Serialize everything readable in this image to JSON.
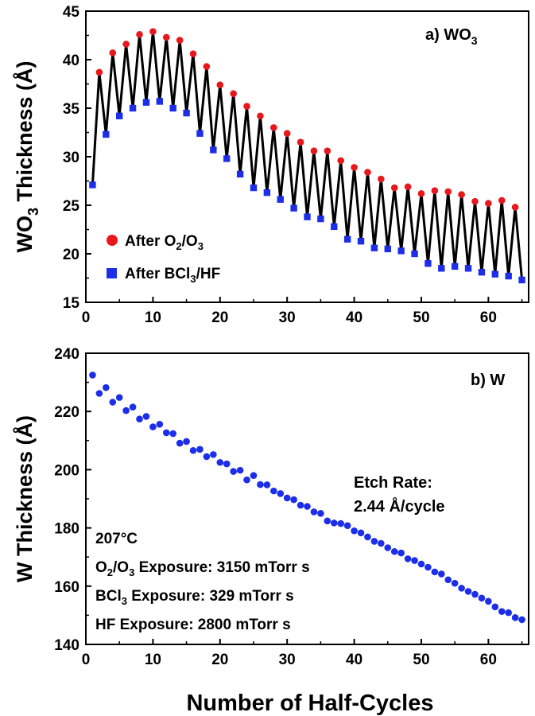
{
  "chart_data": [
    {
      "type": "line",
      "panel_label": "a) WO",
      "panel_label_sub": "3",
      "ylabel": "WO",
      "ylabel_sub": "3",
      "ylabel_rest": " Thickness (Å)",
      "xlim": [
        0,
        66
      ],
      "ylim": [
        15,
        45
      ],
      "x_ticks": [
        0,
        10,
        20,
        30,
        40,
        50,
        60
      ],
      "y_ticks": [
        15,
        20,
        25,
        30,
        35,
        40,
        45
      ],
      "line_color": "#000000",
      "x": [
        1,
        2,
        3,
        4,
        5,
        6,
        7,
        8,
        9,
        10,
        11,
        12,
        13,
        14,
        15,
        16,
        17,
        18,
        19,
        20,
        21,
        22,
        23,
        24,
        25,
        26,
        27,
        28,
        29,
        30,
        31,
        32,
        33,
        34,
        35,
        36,
        37,
        38,
        39,
        40,
        41,
        42,
        43,
        44,
        45,
        46,
        47,
        48,
        49,
        50,
        51,
        52,
        53,
        54,
        55,
        56,
        57,
        58,
        59,
        60,
        61,
        62,
        63,
        64,
        65
      ],
      "values": [
        27.1,
        38.7,
        32.3,
        40.7,
        34.2,
        41.6,
        35.0,
        42.6,
        35.6,
        42.9,
        35.7,
        42.3,
        35.0,
        42.0,
        34.5,
        40.6,
        32.4,
        39.3,
        30.7,
        37.4,
        29.8,
        36.5,
        28.2,
        35.2,
        26.8,
        34.2,
        26.3,
        33.0,
        25.6,
        32.4,
        24.7,
        31.5,
        23.8,
        30.6,
        23.6,
        30.6,
        22.8,
        29.6,
        21.5,
        28.9,
        21.3,
        28.4,
        20.6,
        27.7,
        20.5,
        26.8,
        20.3,
        26.9,
        20.0,
        26.2,
        19.0,
        26.5,
        18.5,
        26.4,
        18.7,
        26.1,
        18.5,
        25.4,
        18.1,
        25.2,
        17.9,
        25.5,
        17.7,
        24.8,
        17.3
      ],
      "series": [
        {
          "name_parts": [
            "After O",
            "2",
            "/O",
            "3"
          ],
          "marker": "circle",
          "color": "#e8171b",
          "x": [
            2,
            4,
            6,
            8,
            10,
            12,
            14,
            16,
            18,
            20,
            22,
            24,
            26,
            28,
            30,
            32,
            34,
            36,
            38,
            40,
            42,
            44,
            46,
            48,
            50,
            52,
            54,
            56,
            58,
            60,
            62,
            64
          ],
          "values": [
            38.7,
            40.7,
            41.6,
            42.6,
            42.9,
            42.3,
            42.0,
            40.6,
            39.3,
            37.4,
            36.5,
            35.2,
            34.2,
            33.0,
            32.4,
            31.5,
            30.6,
            30.6,
            29.6,
            28.9,
            28.4,
            27.7,
            26.8,
            26.9,
            26.2,
            26.5,
            26.4,
            26.1,
            25.4,
            25.2,
            25.5,
            24.8
          ]
        },
        {
          "name_parts": [
            "After BCl",
            "3",
            "/HF",
            ""
          ],
          "marker": "square",
          "color": "#1c2ee8",
          "x": [
            1,
            3,
            5,
            7,
            9,
            11,
            13,
            15,
            17,
            19,
            21,
            23,
            25,
            27,
            29,
            31,
            33,
            35,
            37,
            39,
            41,
            43,
            45,
            47,
            49,
            51,
            53,
            55,
            57,
            59,
            61,
            63,
            65
          ],
          "values": [
            27.1,
            32.3,
            34.2,
            35.0,
            35.6,
            35.7,
            35.0,
            34.5,
            32.4,
            30.7,
            29.8,
            28.2,
            26.8,
            26.3,
            25.6,
            24.7,
            23.8,
            23.6,
            22.8,
            21.5,
            21.3,
            20.6,
            20.5,
            20.3,
            20.0,
            19.0,
            18.5,
            18.7,
            18.5,
            18.1,
            17.9,
            17.7,
            17.3
          ]
        }
      ],
      "legend_position": "bottom-left"
    },
    {
      "type": "scatter",
      "panel_label": "b) W",
      "ylabel": "W Thickness (Å)",
      "xlabel": "Number of Half-Cycles",
      "xlim": [
        0,
        66
      ],
      "ylim": [
        140,
        240
      ],
      "x_ticks": [
        0,
        10,
        20,
        30,
        40,
        50,
        60
      ],
      "y_ticks": [
        140,
        160,
        180,
        200,
        220,
        240
      ],
      "marker_color": "#1c2ee8",
      "x": [
        1,
        2,
        3,
        4,
        5,
        6,
        7,
        8,
        9,
        10,
        11,
        12,
        13,
        14,
        15,
        16,
        17,
        18,
        19,
        20,
        21,
        22,
        23,
        24,
        25,
        26,
        27,
        28,
        29,
        30,
        31,
        32,
        33,
        34,
        35,
        36,
        37,
        38,
        39,
        40,
        41,
        42,
        43,
        44,
        45,
        46,
        47,
        48,
        49,
        50,
        51,
        52,
        53,
        54,
        55,
        56,
        57,
        58,
        59,
        60,
        61,
        62,
        63,
        64,
        65
      ],
      "values": [
        232.5,
        226.2,
        228.2,
        223.2,
        224.8,
        220.3,
        221.5,
        217.4,
        218.3,
        214.7,
        215.6,
        212.7,
        212.4,
        209.1,
        209.7,
        206.6,
        207.0,
        204.5,
        205.2,
        202.5,
        202.0,
        199.4,
        199.8,
        196.5,
        198.0,
        194.9,
        194.8,
        192.7,
        191.8,
        190.3,
        189.7,
        187.8,
        187.4,
        185.5,
        185.0,
        182.4,
        181.7,
        181.5,
        180.8,
        179.0,
        178.3,
        176.9,
        175.4,
        174.7,
        173.2,
        171.9,
        171.4,
        169.4,
        168.8,
        167.6,
        166.5,
        164.9,
        164.2,
        162.2,
        161.0,
        159.3,
        158.2,
        157.2,
        155.9,
        154.8,
        152.9,
        151.3,
        150.9,
        149.2,
        148.5
      ],
      "annotations": {
        "rate_title": "Etch Rate:",
        "rate_value": "2.44 Å/cycle",
        "temperature": "207°C",
        "o2o3_parts": [
          "O",
          "2",
          "/O",
          "3",
          " Exposure: 3150 mTorr s"
        ],
        "bcl3_parts": [
          "BCl",
          "3",
          " Exposure: 329 mTorr s"
        ],
        "hf": "HF Exposure: 2800 mTorr s"
      }
    }
  ]
}
